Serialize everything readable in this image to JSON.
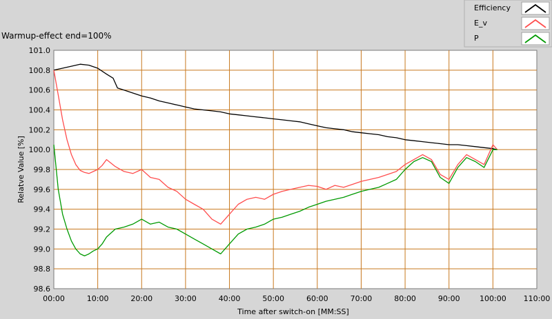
{
  "subtitle": "Warmup-effect end=100%",
  "chart_data": {
    "type": "line",
    "xlabel": "Time after switch-on [MM:SS]",
    "ylabel": "Relatve Value [%]",
    "xlim": [
      0,
      110
    ],
    "ylim": [
      98.6,
      101.0
    ],
    "x_ticks": [
      0,
      10,
      20,
      30,
      40,
      50,
      60,
      70,
      80,
      90,
      100,
      110
    ],
    "x_tick_labels": [
      "00:00",
      "10:00",
      "20:00",
      "30:00",
      "40:00",
      "50:00",
      "60:00",
      "70:00",
      "80:00",
      "90:00",
      "100:00",
      "110:00"
    ],
    "y_ticks": [
      98.6,
      98.8,
      99.0,
      99.2,
      99.4,
      99.6,
      99.8,
      100.0,
      100.2,
      100.4,
      100.6,
      100.8,
      101.0
    ],
    "y_tick_labels": [
      "98.6",
      "98.8",
      "99.0",
      "99.2",
      "99.4",
      "99.6",
      "99.8",
      "100.0",
      "100.2",
      "100.4",
      "100.6",
      "100.8",
      "101.0"
    ],
    "grid": true,
    "legend_position": "top-right",
    "series": [
      {
        "name": "Efficiency",
        "color": "#000000",
        "x": [
          0,
          2,
          4,
          6,
          8,
          10,
          12,
          13.5,
          14.5,
          16,
          18,
          20,
          22,
          24,
          26,
          28,
          30,
          32,
          34,
          36,
          38,
          40,
          42,
          44,
          46,
          48,
          50,
          52,
          54,
          56,
          58,
          60,
          62,
          64,
          66,
          68,
          70,
          72,
          74,
          76,
          78,
          80,
          82,
          84,
          86,
          88,
          90,
          92,
          94,
          96,
          98,
          100,
          101
        ],
        "y": [
          100.8,
          100.82,
          100.84,
          100.86,
          100.85,
          100.82,
          100.76,
          100.72,
          100.62,
          100.6,
          100.57,
          100.54,
          100.52,
          100.49,
          100.47,
          100.45,
          100.43,
          100.41,
          100.4,
          100.39,
          100.38,
          100.36,
          100.35,
          100.34,
          100.33,
          100.32,
          100.31,
          100.3,
          100.29,
          100.28,
          100.26,
          100.24,
          100.22,
          100.21,
          100.2,
          100.18,
          100.17,
          100.16,
          100.15,
          100.13,
          100.12,
          100.1,
          100.09,
          100.08,
          100.07,
          100.06,
          100.05,
          100.05,
          100.04,
          100.03,
          100.02,
          100.01,
          100.0
        ]
      },
      {
        "name": "E_v",
        "color": "#ff4d4d",
        "x": [
          0,
          1,
          2,
          3,
          4,
          5,
          6,
          7,
          8,
          9,
          10,
          11,
          12,
          14,
          16,
          18,
          20,
          22,
          24,
          26,
          28,
          30,
          32,
          34,
          36,
          38,
          40,
          42,
          44,
          46,
          48,
          50,
          52,
          54,
          56,
          58,
          60,
          62,
          64,
          66,
          68,
          70,
          72,
          74,
          76,
          78,
          80,
          82,
          84,
          86,
          88,
          90,
          92,
          94,
          96,
          98,
          100,
          101
        ],
        "y": [
          100.8,
          100.55,
          100.3,
          100.1,
          99.95,
          99.85,
          99.79,
          99.77,
          99.76,
          99.78,
          99.8,
          99.84,
          99.9,
          99.83,
          99.78,
          99.76,
          99.8,
          99.72,
          99.7,
          99.62,
          99.58,
          99.5,
          99.45,
          99.4,
          99.3,
          99.25,
          99.35,
          99.45,
          99.5,
          99.52,
          99.5,
          99.55,
          99.58,
          99.6,
          99.62,
          99.64,
          99.63,
          99.6,
          99.64,
          99.62,
          99.65,
          99.68,
          99.7,
          99.72,
          99.75,
          99.78,
          99.85,
          99.9,
          99.95,
          99.9,
          99.75,
          99.7,
          99.85,
          99.95,
          99.9,
          99.85,
          100.05,
          100.0
        ]
      },
      {
        "name": "P",
        "color": "#009900",
        "x": [
          0,
          1,
          2,
          3,
          4,
          5,
          6,
          7,
          8,
          9,
          10,
          11,
          12,
          14,
          16,
          18,
          20,
          22,
          24,
          26,
          28,
          30,
          32,
          34,
          36,
          38,
          40,
          42,
          44,
          46,
          48,
          50,
          52,
          54,
          56,
          58,
          60,
          62,
          64,
          66,
          68,
          70,
          72,
          74,
          76,
          78,
          80,
          82,
          84,
          86,
          88,
          90,
          92,
          94,
          96,
          98,
          100,
          101
        ],
        "y": [
          100.05,
          99.6,
          99.35,
          99.2,
          99.08,
          99.0,
          98.95,
          98.93,
          98.95,
          98.98,
          99.0,
          99.05,
          99.12,
          99.2,
          99.22,
          99.25,
          99.3,
          99.25,
          99.27,
          99.22,
          99.2,
          99.15,
          99.1,
          99.05,
          99.0,
          98.95,
          99.05,
          99.15,
          99.2,
          99.22,
          99.25,
          99.3,
          99.32,
          99.35,
          99.38,
          99.42,
          99.45,
          99.48,
          99.5,
          99.52,
          99.55,
          99.58,
          99.6,
          99.62,
          99.66,
          99.7,
          99.8,
          99.88,
          99.92,
          99.88,
          99.72,
          99.66,
          99.82,
          99.92,
          99.88,
          99.82,
          100.0,
          100.0
        ]
      }
    ]
  }
}
